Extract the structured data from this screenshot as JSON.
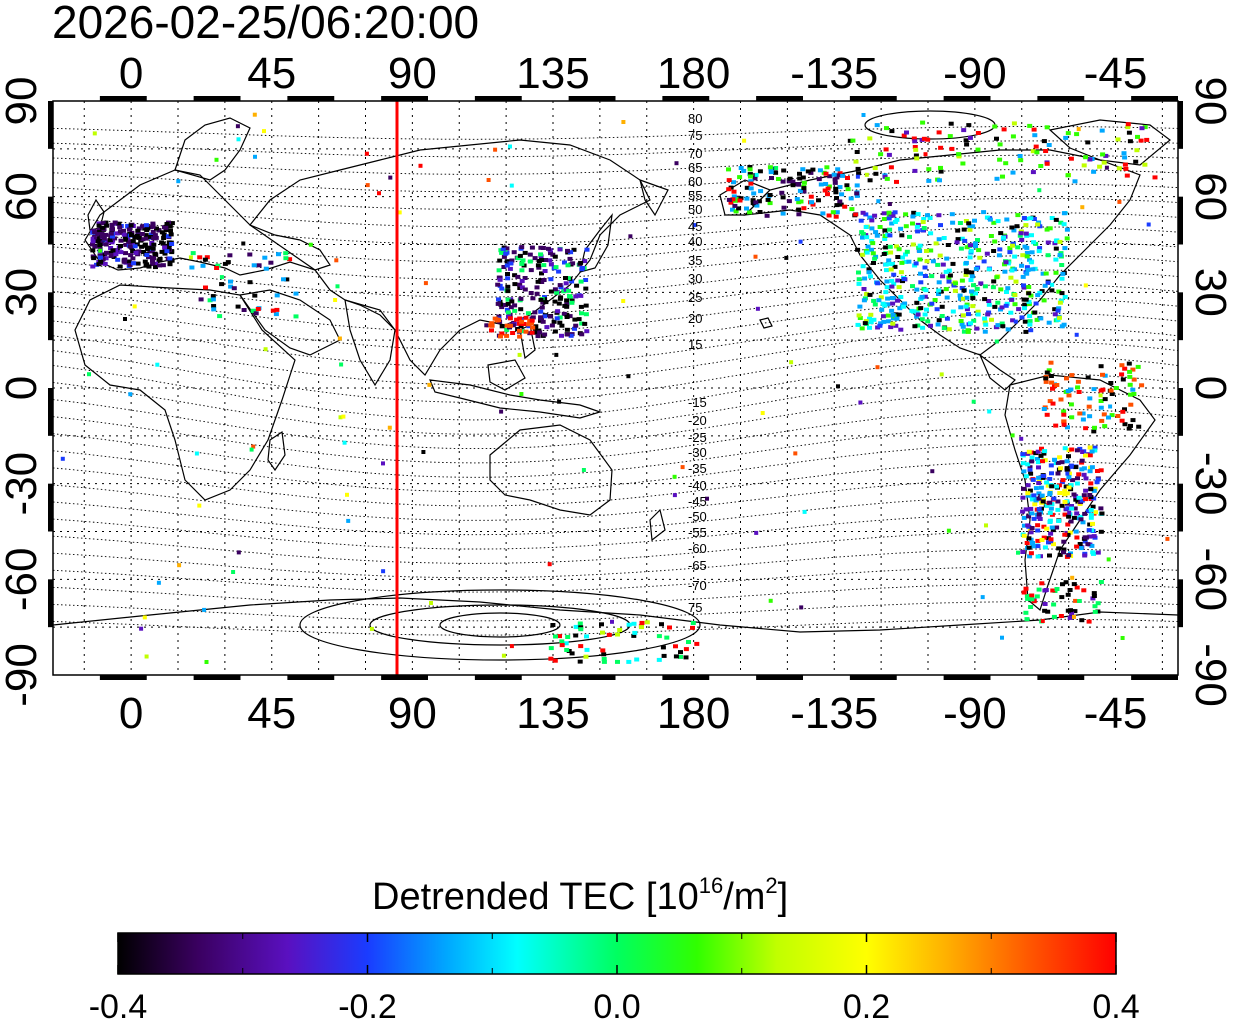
{
  "header": {
    "timestamp": "2026-02-25/06:20:00"
  },
  "map": {
    "x_ticks_top": [
      "0",
      "45",
      "90",
      "135",
      "180",
      "-135",
      "-90",
      "-45"
    ],
    "x_ticks_bottom": [
      "0",
      "45",
      "90",
      "135",
      "180",
      "-135",
      "-90",
      "-45"
    ],
    "y_ticks_left": [
      "90",
      "60",
      "30",
      "0",
      "-30",
      "-60",
      "-90"
    ],
    "y_ticks_right": [
      "90",
      "60",
      "30",
      "0",
      "-30",
      "-60",
      "-90"
    ],
    "lon_range": [
      -25,
      335
    ],
    "lat_range": [
      -90,
      90
    ],
    "grid": "dotted, every 15 degrees",
    "terminator_longitude": 87,
    "terminator_color": "#ff0000",
    "magnetic_latitude_labels_north": [
      "80",
      "75",
      "70",
      "65",
      "60",
      "55",
      "50",
      "45",
      "40",
      "35",
      "30",
      "25",
      "20",
      "15"
    ],
    "magnetic_latitude_labels_south": [
      "-15",
      "-20",
      "-25",
      "-30",
      "-35",
      "-40",
      "-45",
      "-50",
      "-55",
      "-60",
      "-65",
      "-70",
      "75"
    ]
  },
  "colorbar": {
    "title_main": "Detrended TEC  [10",
    "title_sup1": "16",
    "title_mid": "/m",
    "title_sup2": "2",
    "title_end": "]",
    "tick_labels": [
      "-0.4",
      "-0.2",
      "0.0",
      "0.2",
      "0.4"
    ],
    "range": [
      -0.4,
      0.4
    ],
    "colors": [
      "#000000",
      "#3a0060",
      "#5a10c0",
      "#1a3cff",
      "#00a8ff",
      "#00ffff",
      "#00ff60",
      "#30ff00",
      "#c0ff00",
      "#ffff00",
      "#ffb000",
      "#ff5000",
      "#ff0000"
    ]
  }
}
